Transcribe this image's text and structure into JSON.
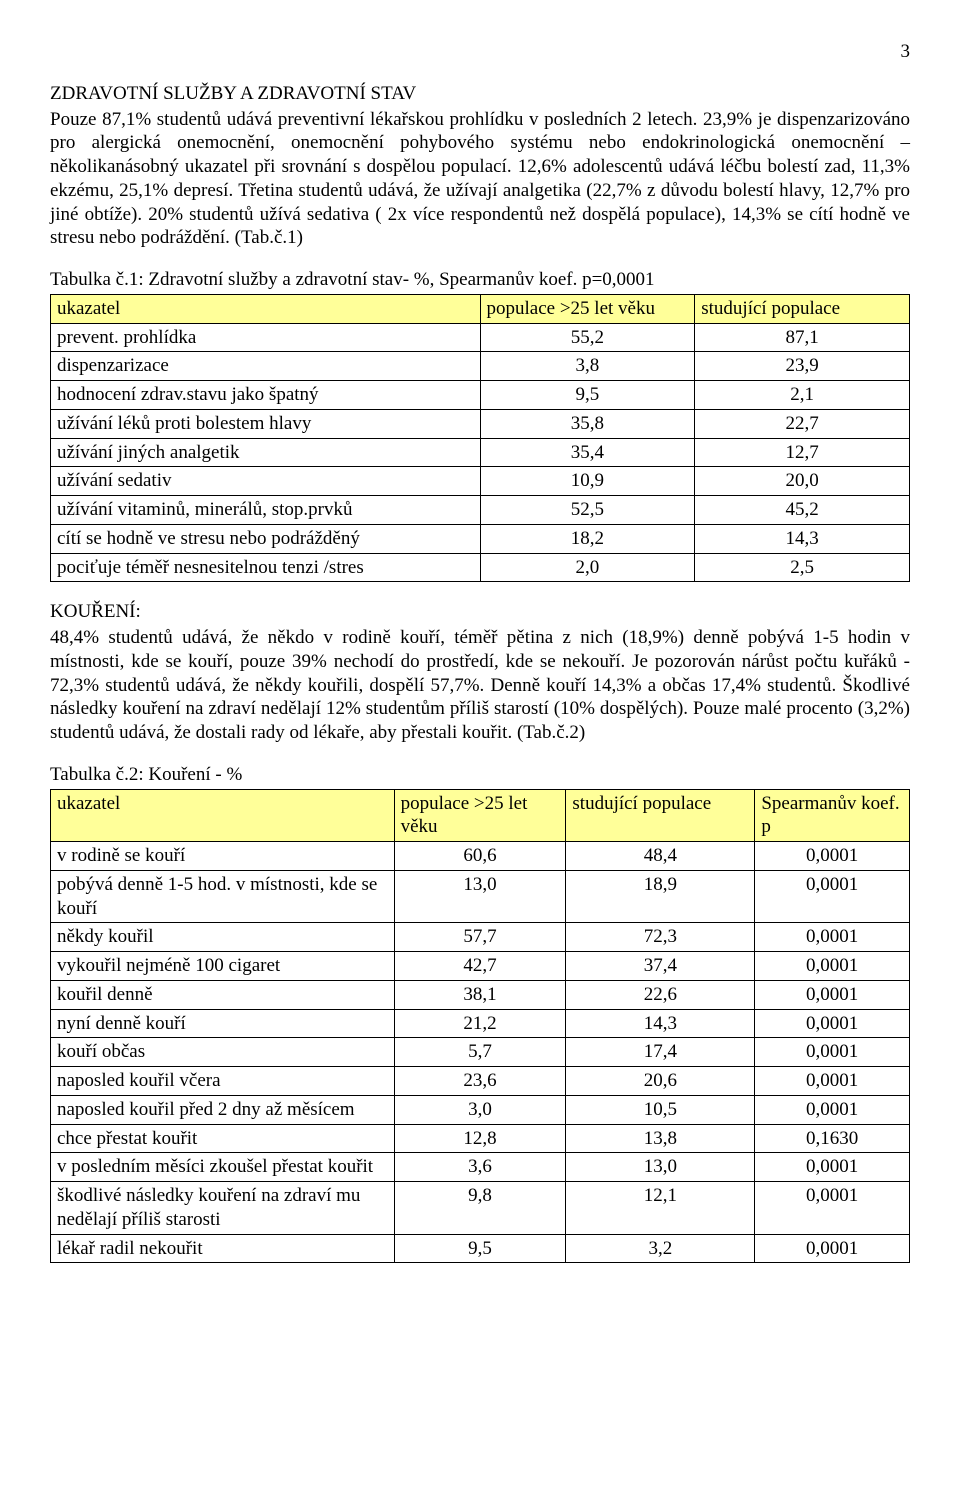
{
  "page_number": "3",
  "colors": {
    "header_bg": "#ffff99",
    "text": "#000000",
    "bg": "#ffffff",
    "border": "#000000"
  },
  "section1": {
    "title": "ZDRAVOTNÍ SLUŽBY A ZDRAVOTNÍ STAV",
    "paragraph": "Pouze 87,1% studentů udává preventivní lékařskou  prohlídku v posledních 2 letech. 23,9%  je dispenzarizováno pro alergická onemocnění, onemocnění pohybového systému nebo endokrinologická onemocnění – několikanásobný ukazatel při srovnání s dospělou populací. 12,6% adolescentů udává léčbu bolestí zad, 11,3% ekzému, 25,1% depresí. Třetina  studentů udává, že užívají analgetika (22,7% z důvodu bolestí hlavy, 12,7% pro jiné obtíže). 20% studentů užívá sedativa ( 2x více respondentů než dospělá populace), 14,3% se cítí hodně ve stresu nebo podráždění. (Tab.č.1)"
  },
  "table1": {
    "caption": "Tabulka č.1: Zdravotní služby a zdravotní stav- %, Spearmanův koef. p=0,0001",
    "headers": [
      "ukazatel",
      "populace >25 let věku",
      "studující populace"
    ],
    "col_widths": [
      "50%",
      "25%",
      "25%"
    ],
    "rows": [
      {
        "label": "prevent. prohlídka",
        "c1": "55,2",
        "c2": "87,1"
      },
      {
        "label": "dispenzarizace",
        "c1": "3,8",
        "c2": "23,9"
      },
      {
        "label": "hodnocení zdrav.stavu jako špatný",
        "c1": "9,5",
        "c2": "2,1"
      },
      {
        "label": "užívání léků proti bolestem hlavy",
        "c1": "35,8",
        "c2": "22,7"
      },
      {
        "label": "užívání jiných analgetik",
        "c1": "35,4",
        "c2": "12,7"
      },
      {
        "label": "užívání sedativ",
        "c1": "10,9",
        "c2": "20,0"
      },
      {
        "label": "užívání vitaminů, minerálů, stop.prvků",
        "c1": "52,5",
        "c2": "45,2"
      },
      {
        "label": "cítí se hodně ve stresu nebo podrážděný",
        "c1": "18,2",
        "c2": "14,3"
      },
      {
        "label": "pociťuje téměř nesnesitelnou tenzi /stres",
        "c1": "2,0",
        "c2": "2,5"
      }
    ]
  },
  "section2": {
    "title": "KOUŘENÍ:",
    "paragraph": "48,4% studentů udává, že někdo v rodině kouří, téměř pětina z nich (18,9%) denně pobývá 1-5 hodin v místnosti, kde se kouří, pouze 39%  nechodí do prostředí, kde se nekouří. Je pozorován nárůst počtu kuřáků - 72,3% studentů udává, že někdy kouřili, dospělí 57,7%. Denně kouří 14,3% a občas 17,4% studentů. Škodlivé následky kouření na zdraví nedělají 12% studentům příliš starostí (10% dospělých).  Pouze malé procento (3,2%) studentů udává, že dostali rady od lékaře, aby přestali kouřit. (Tab.č.2)"
  },
  "table2": {
    "caption": "Tabulka č.2: Kouření - %",
    "headers": [
      "ukazatel",
      "populace >25 let věku",
      "studující populace",
      "Spearmanův koef. p"
    ],
    "col_widths": [
      "40%",
      "20%",
      "22%",
      "18%"
    ],
    "rows": [
      {
        "label": "v rodině se kouří",
        "c1": "60,6",
        "c2": "48,4",
        "c3": "0,0001"
      },
      {
        "label": "pobývá denně 1-5 hod. v místnosti, kde se kouří",
        "c1": "13,0",
        "c2": "18,9",
        "c3": "0,0001"
      },
      {
        "label": "někdy kouřil",
        "c1": "57,7",
        "c2": "72,3",
        "c3": "0,0001"
      },
      {
        "label": "vykouřil nejméně 100 cigaret",
        "c1": "42,7",
        "c2": "37,4",
        "c3": "0,0001"
      },
      {
        "label": "kouřil denně",
        "c1": "38,1",
        "c2": "22,6",
        "c3": "0,0001"
      },
      {
        "label": "nyní denně kouří",
        "c1": "21,2",
        "c2": "14,3",
        "c3": "0,0001"
      },
      {
        "label": "kouří občas",
        "c1": "5,7",
        "c2": "17,4",
        "c3": "0,0001"
      },
      {
        "label": "naposled kouřil včera",
        "c1": "23,6",
        "c2": "20,6",
        "c3": "0,0001"
      },
      {
        "label": "naposled kouřil před 2 dny až měsícem",
        "c1": "3,0",
        "c2": "10,5",
        "c3": "0,0001"
      },
      {
        "label": "chce přestat kouřit",
        "c1": "12,8",
        "c2": "13,8",
        "c3": "0,1630"
      },
      {
        "label": "v posledním měsíci zkoušel přestat kouřit",
        "c1": "3,6",
        "c2": "13,0",
        "c3": "0,0001"
      },
      {
        "label": "škodlivé následky kouření na zdraví mu nedělají příliš starosti",
        "c1": "9,8",
        "c2": "12,1",
        "c3": "0,0001"
      },
      {
        "label": "lékař radil nekouřit",
        "c1": "9,5",
        "c2": "3,2",
        "c3": "0,0001"
      }
    ]
  }
}
